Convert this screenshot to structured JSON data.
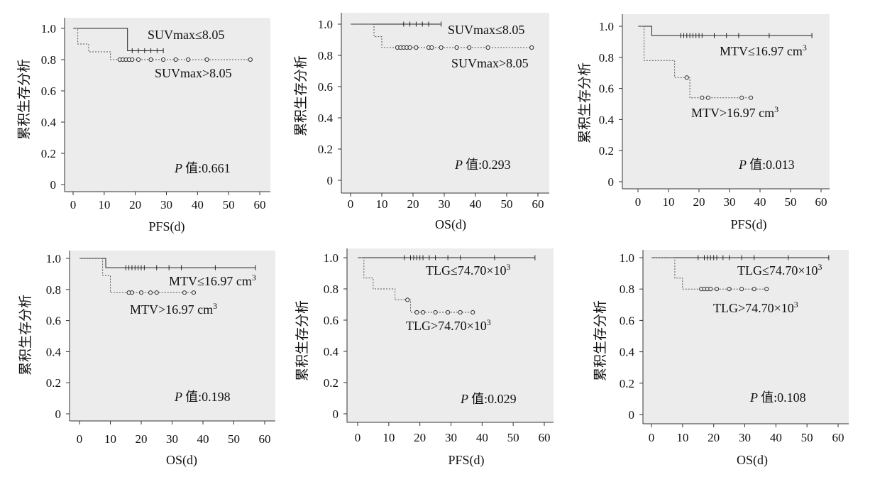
{
  "chart_data": [
    {
      "type": "line",
      "xlabel": "PFS(d)",
      "ylabel": "累积生存分析",
      "xlim": [
        0,
        60
      ],
      "ylim": [
        0,
        1.0
      ],
      "xticks": [
        "0",
        "10",
        "20",
        "30",
        "40",
        "50",
        "60"
      ],
      "yticks": [
        "0",
        "0.2",
        "0.4",
        "0.6",
        "0.8",
        "1.0"
      ],
      "p_prefix": "P",
      "p_label": "值",
      "p_value": ":0.661",
      "series": [
        {
          "name": "SUVmax≤8.05",
          "steps": [
            [
              0,
              1.0
            ],
            [
              17.5,
              1.0
            ],
            [
              17.5,
              0.857
            ],
            [
              29,
              0.857
            ]
          ],
          "censored": [
            [
              19,
              0.857
            ],
            [
              21,
              0.857
            ],
            [
              23,
              0.857
            ],
            [
              25,
              0.857
            ],
            [
              27,
              0.857
            ],
            [
              29,
              0.857
            ]
          ]
        },
        {
          "name": "SUVmax>8.05",
          "steps": [
            [
              0,
              1.0
            ],
            [
              1.5,
              1.0
            ],
            [
              1.5,
              0.9
            ],
            [
              5,
              0.9
            ],
            [
              5,
              0.85
            ],
            [
              12,
              0.85
            ],
            [
              12,
              0.8
            ],
            [
              57,
              0.8
            ]
          ],
          "censored": [
            [
              15,
              0.8
            ],
            [
              16,
              0.8
            ],
            [
              17,
              0.8
            ],
            [
              18,
              0.8
            ],
            [
              19,
              0.8
            ],
            [
              21,
              0.8
            ],
            [
              25,
              0.8
            ],
            [
              29,
              0.8
            ],
            [
              33,
              0.8
            ],
            [
              37,
              0.8
            ],
            [
              43,
              0.8
            ],
            [
              57,
              0.8
            ]
          ]
        }
      ]
    },
    {
      "type": "line",
      "xlabel": "OS(d)",
      "ylabel": "累积生存分析",
      "xlim": [
        0,
        60
      ],
      "ylim": [
        0,
        1.0
      ],
      "xticks": [
        "0",
        "10",
        "20",
        "30",
        "40",
        "50",
        "60"
      ],
      "yticks": [
        "0",
        "0.2",
        "0.4",
        "0.6",
        "0.8",
        "1.0"
      ],
      "p_prefix": "P",
      "p_label": "值",
      "p_value": ":0.293",
      "series": [
        {
          "name": "SUVmax≤8.05",
          "steps": [
            [
              0,
              1.0
            ],
            [
              29,
              1.0
            ]
          ],
          "censored": [
            [
              17,
              1.0
            ],
            [
              19,
              1.0
            ],
            [
              21,
              1.0
            ],
            [
              23,
              1.0
            ],
            [
              25,
              1.0
            ],
            [
              29,
              1.0
            ]
          ]
        },
        {
          "name": "SUVmax>8.05",
          "steps": [
            [
              0,
              1.0
            ],
            [
              7.5,
              1.0
            ],
            [
              7.5,
              0.92
            ],
            [
              10,
              0.92
            ],
            [
              10,
              0.85
            ],
            [
              58,
              0.85
            ]
          ],
          "censored": [
            [
              15,
              0.85
            ],
            [
              16,
              0.85
            ],
            [
              17,
              0.85
            ],
            [
              18,
              0.85
            ],
            [
              19,
              0.85
            ],
            [
              21,
              0.85
            ],
            [
              25,
              0.85
            ],
            [
              26,
              0.85
            ],
            [
              29,
              0.85
            ],
            [
              34,
              0.85
            ],
            [
              38,
              0.85
            ],
            [
              44,
              0.85
            ],
            [
              58,
              0.85
            ]
          ]
        }
      ]
    },
    {
      "type": "line",
      "xlabel": "PFS(d)",
      "ylabel": "累积生存分析",
      "xlim": [
        0,
        60
      ],
      "ylim": [
        0,
        1.0
      ],
      "xticks": [
        "0",
        "10",
        "20",
        "30",
        "40",
        "50",
        "60"
      ],
      "yticks": [
        "0",
        "0.2",
        "0.4",
        "0.6",
        "0.8",
        "1.0"
      ],
      "p_prefix": "P",
      "p_label": "值",
      "p_value": ":0.013",
      "series": [
        {
          "name": "MTV≤16.97 cm³",
          "steps": [
            [
              0,
              1.0
            ],
            [
              4.5,
              1.0
            ],
            [
              4.5,
              0.94
            ],
            [
              57,
              0.94
            ]
          ],
          "censored": [
            [
              14,
              0.94
            ],
            [
              15,
              0.94
            ],
            [
              16,
              0.94
            ],
            [
              17,
              0.94
            ],
            [
              18,
              0.94
            ],
            [
              19,
              0.94
            ],
            [
              20,
              0.94
            ],
            [
              21,
              0.94
            ],
            [
              25,
              0.94
            ],
            [
              29,
              0.94
            ],
            [
              33,
              0.94
            ],
            [
              43,
              0.94
            ],
            [
              57,
              0.94
            ]
          ]
        },
        {
          "name": "MTV>16.97 cm³",
          "steps": [
            [
              0,
              1.0
            ],
            [
              2,
              1.0
            ],
            [
              2,
              0.78
            ],
            [
              12,
              0.78
            ],
            [
              12,
              0.67
            ],
            [
              17,
              0.67
            ],
            [
              17,
              0.54
            ],
            [
              37,
              0.54
            ]
          ],
          "censored": [
            [
              16,
              0.67
            ],
            [
              21,
              0.54
            ],
            [
              23,
              0.54
            ],
            [
              34,
              0.54
            ],
            [
              37,
              0.54
            ]
          ]
        }
      ]
    },
    {
      "type": "line",
      "xlabel": "OS(d)",
      "ylabel": "累积生存分析",
      "xlim": [
        0,
        60
      ],
      "ylim": [
        0,
        1.0
      ],
      "xticks": [
        "0",
        "10",
        "20",
        "30",
        "40",
        "50",
        "60"
      ],
      "yticks": [
        "0",
        "0.2",
        "0.4",
        "0.6",
        "0.8",
        "1.0"
      ],
      "p_prefix": "P",
      "p_label": "值",
      "p_value": ":0.198",
      "series": [
        {
          "name": "MTV≤16.97 cm³",
          "steps": [
            [
              0,
              1.0
            ],
            [
              8.5,
              1.0
            ],
            [
              8.5,
              0.94
            ],
            [
              57,
              0.94
            ]
          ],
          "censored": [
            [
              15,
              0.94
            ],
            [
              16,
              0.94
            ],
            [
              17,
              0.94
            ],
            [
              18,
              0.94
            ],
            [
              19,
              0.94
            ],
            [
              20,
              0.94
            ],
            [
              21,
              0.94
            ],
            [
              25,
              0.94
            ],
            [
              29,
              0.94
            ],
            [
              33,
              0.94
            ],
            [
              44,
              0.94
            ],
            [
              57,
              0.94
            ]
          ]
        },
        {
          "name": "MTV>16.97 cm³",
          "steps": [
            [
              0,
              1.0
            ],
            [
              7.5,
              1.0
            ],
            [
              7.5,
              0.89
            ],
            [
              10,
              0.89
            ],
            [
              10,
              0.78
            ],
            [
              37,
              0.78
            ]
          ],
          "censored": [
            [
              16,
              0.78
            ],
            [
              17,
              0.78
            ],
            [
              20,
              0.78
            ],
            [
              23,
              0.78
            ],
            [
              25,
              0.78
            ],
            [
              34,
              0.78
            ],
            [
              37,
              0.78
            ]
          ]
        }
      ]
    },
    {
      "type": "line",
      "xlabel": "PFS(d)",
      "ylabel": "累积生存分析",
      "xlim": [
        0,
        60
      ],
      "ylim": [
        0,
        1.0
      ],
      "xticks": [
        "0",
        "10",
        "20",
        "30",
        "40",
        "50",
        "60"
      ],
      "yticks": [
        "0",
        "0.2",
        "0.4",
        "0.6",
        "0.8",
        "1.0"
      ],
      "p_prefix": "P",
      "p_label": "值",
      "p_value": ":0.029",
      "series": [
        {
          "name": "TLG≤74.70×10³",
          "steps": [
            [
              0,
              1.0
            ],
            [
              57,
              1.0
            ]
          ],
          "censored": [
            [
              15,
              1.0
            ],
            [
              17,
              1.0
            ],
            [
              18,
              1.0
            ],
            [
              19,
              1.0
            ],
            [
              20,
              1.0
            ],
            [
              21,
              1.0
            ],
            [
              23,
              1.0
            ],
            [
              25,
              1.0
            ],
            [
              29,
              1.0
            ],
            [
              33,
              1.0
            ],
            [
              44,
              1.0
            ],
            [
              57,
              1.0
            ]
          ]
        },
        {
          "name": "TLG>74.70×10³",
          "steps": [
            [
              0,
              1.0
            ],
            [
              2,
              1.0
            ],
            [
              2,
              0.87
            ],
            [
              5,
              0.87
            ],
            [
              5,
              0.8
            ],
            [
              12,
              0.8
            ],
            [
              12,
              0.73
            ],
            [
              17,
              0.73
            ],
            [
              17,
              0.65
            ],
            [
              37,
              0.65
            ]
          ],
          "censored": [
            [
              16,
              0.73
            ],
            [
              19,
              0.65
            ],
            [
              21,
              0.65
            ],
            [
              25,
              0.65
            ],
            [
              29,
              0.65
            ],
            [
              33,
              0.65
            ],
            [
              37,
              0.65
            ]
          ]
        }
      ]
    },
    {
      "type": "line",
      "xlabel": "OS(d)",
      "ylabel": "累积生存分析",
      "xlim": [
        0,
        60
      ],
      "ylim": [
        0,
        1.0
      ],
      "xticks": [
        "0",
        "10",
        "20",
        "30",
        "40",
        "50",
        "60"
      ],
      "yticks": [
        "0",
        "0.2",
        "0.4",
        "0.6",
        "0.8",
        "1.0"
      ],
      "p_prefix": "P",
      "p_label": "值",
      "p_value": ":0.108",
      "series": [
        {
          "name": "TLG≤74.70×10³",
          "steps": [
            [
              0,
              1.0
            ],
            [
              57,
              1.0
            ]
          ],
          "censored": [
            [
              15,
              1.0
            ],
            [
              17,
              1.0
            ],
            [
              18,
              1.0
            ],
            [
              19,
              1.0
            ],
            [
              20,
              1.0
            ],
            [
              21,
              1.0
            ],
            [
              23,
              1.0
            ],
            [
              25,
              1.0
            ],
            [
              29,
              1.0
            ],
            [
              33,
              1.0
            ],
            [
              44,
              1.0
            ],
            [
              57,
              1.0
            ]
          ]
        },
        {
          "name": "TLG>74.70×10³",
          "steps": [
            [
              0,
              1.0
            ],
            [
              7.5,
              1.0
            ],
            [
              7.5,
              0.87
            ],
            [
              10,
              0.87
            ],
            [
              10,
              0.8
            ],
            [
              37,
              0.8
            ]
          ],
          "censored": [
            [
              16,
              0.8
            ],
            [
              17,
              0.8
            ],
            [
              18,
              0.8
            ],
            [
              19,
              0.8
            ],
            [
              21,
              0.8
            ],
            [
              25,
              0.8
            ],
            [
              29,
              0.8
            ],
            [
              33,
              0.8
            ],
            [
              37,
              0.8
            ]
          ]
        }
      ]
    }
  ]
}
